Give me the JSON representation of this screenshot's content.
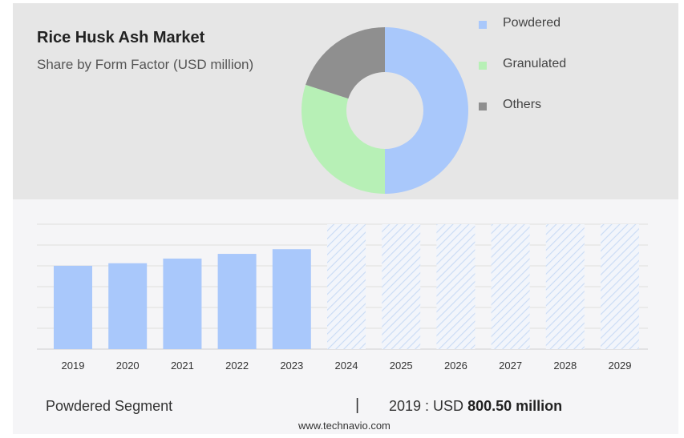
{
  "header": {
    "title": "Rice Husk Ash Market",
    "subtitle": "Share by Form Factor (USD million)"
  },
  "footer": {
    "segment_label": "Powdered Segment",
    "separator": "|",
    "value_prefix": "2019 : USD",
    "value_bold": "800.50 million"
  },
  "watermark": "www.technavio.com",
  "colors": {
    "powdered": "#a9c8fb",
    "granulated": "#b7f0b6",
    "others": "#8f8f8f",
    "forecast_hatch": "#c9dbf5"
  },
  "chart_data": [
    {
      "type": "pie",
      "style": "donut",
      "legend_position": "right",
      "labels": [
        "Powdered",
        "Granulated",
        "Others"
      ],
      "values": [
        50,
        30,
        20
      ]
    },
    {
      "type": "bar",
      "categories": [
        "2019",
        "2020",
        "2021",
        "2022",
        "2023",
        "2024",
        "2025",
        "2026",
        "2027",
        "2028",
        "2029"
      ],
      "series": [
        {
          "name": "Powdered",
          "values": [
            800.5,
            825,
            870,
            915,
            960,
            null,
            null,
            null,
            null,
            null,
            null
          ]
        }
      ],
      "forecast_years": [
        "2024",
        "2025",
        "2026",
        "2027",
        "2028",
        "2029"
      ],
      "grid": true,
      "ylim": [
        0,
        1200
      ]
    }
  ]
}
